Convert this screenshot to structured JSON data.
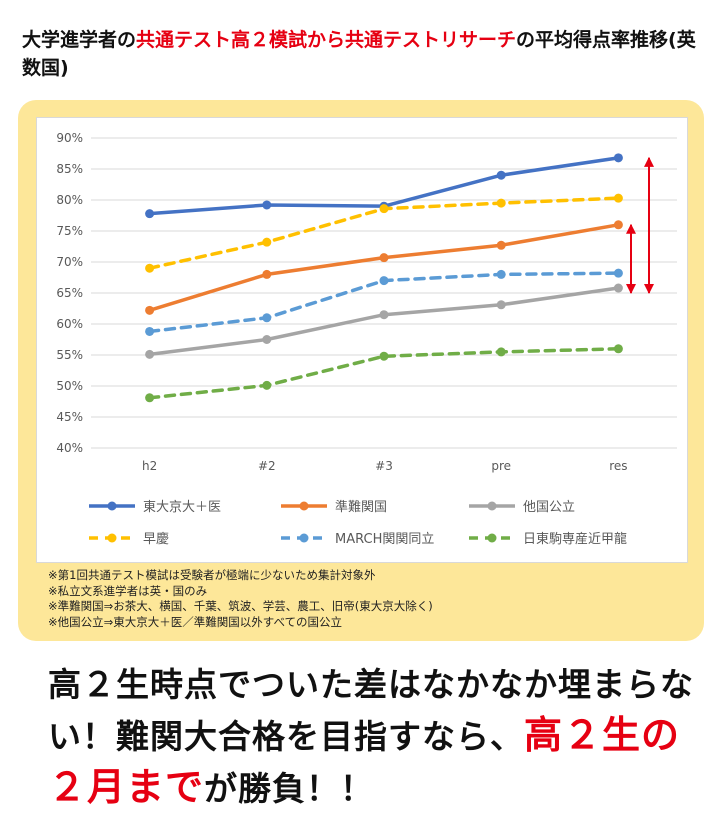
{
  "title": {
    "part1": "大学進学者の",
    "highlight": "共通テスト高２模試から共通テストリサーチ",
    "part2": "の平均得点率推移(英数国)"
  },
  "chart_data": {
    "type": "line",
    "categories": [
      "h2",
      "#2",
      "#3",
      "pre",
      "res"
    ],
    "y_axis": {
      "ylim": [
        40,
        90
      ],
      "tick_labels": [
        "90%",
        "85%",
        "80%",
        "75%",
        "70%",
        "65%",
        "60%",
        "55%",
        "50%",
        "45%",
        "40%"
      ],
      "grid": true
    },
    "series": [
      {
        "name": "東大京大＋医",
        "color": "#4472c4",
        "dash": "solid",
        "values": [
          77.8,
          79.2,
          79.0,
          84.0,
          86.8
        ]
      },
      {
        "name": "準難関国",
        "color": "#ed7d31",
        "dash": "solid",
        "values": [
          62.2,
          68.0,
          70.7,
          72.7,
          76.0
        ]
      },
      {
        "name": "他国公立",
        "color": "#a5a5a5",
        "dash": "solid",
        "values": [
          55.1,
          57.5,
          61.5,
          63.1,
          65.8
        ]
      },
      {
        "name": "早慶",
        "color": "#ffc000",
        "dash": "dashed",
        "values": [
          69.0,
          73.2,
          78.6,
          79.5,
          80.3
        ]
      },
      {
        "name": "MARCH関関同立",
        "color": "#5b9bd5",
        "dash": "dashed",
        "values": [
          58.8,
          61.0,
          67.0,
          68.0,
          68.2
        ]
      },
      {
        "name": "日東駒専産近甲龍",
        "color": "#70ad47",
        "dash": "dashed",
        "values": [
          48.1,
          50.1,
          54.8,
          55.5,
          56.0
        ]
      }
    ],
    "legend_position": "bottom",
    "annotations": [
      {
        "type": "double-arrow",
        "color": "#e60012",
        "x_category": "res",
        "from": 65.0,
        "to": 86.8
      },
      {
        "type": "double-arrow",
        "color": "#e60012",
        "x_category": "res",
        "from": 65.0,
        "to": 76.0
      }
    ]
  },
  "notes": [
    "※第1回共通テスト模試は受験者が極端に少ないため集計対象外",
    "※私立文系進学者は英・国のみ",
    "※準難関国⇒お茶大、横国、千葉、筑波、学芸、農工、旧帝(東大京大除く)",
    "※他国公立⇒東大京大＋医／準難関国以外すべての国公立"
  ],
  "conclusion": {
    "part1": "高２生時点でついた差はなかなか埋まらない！難関大合格を目指すなら、",
    "highlight": "高２生の２月まで",
    "part2": "が勝負！！"
  }
}
